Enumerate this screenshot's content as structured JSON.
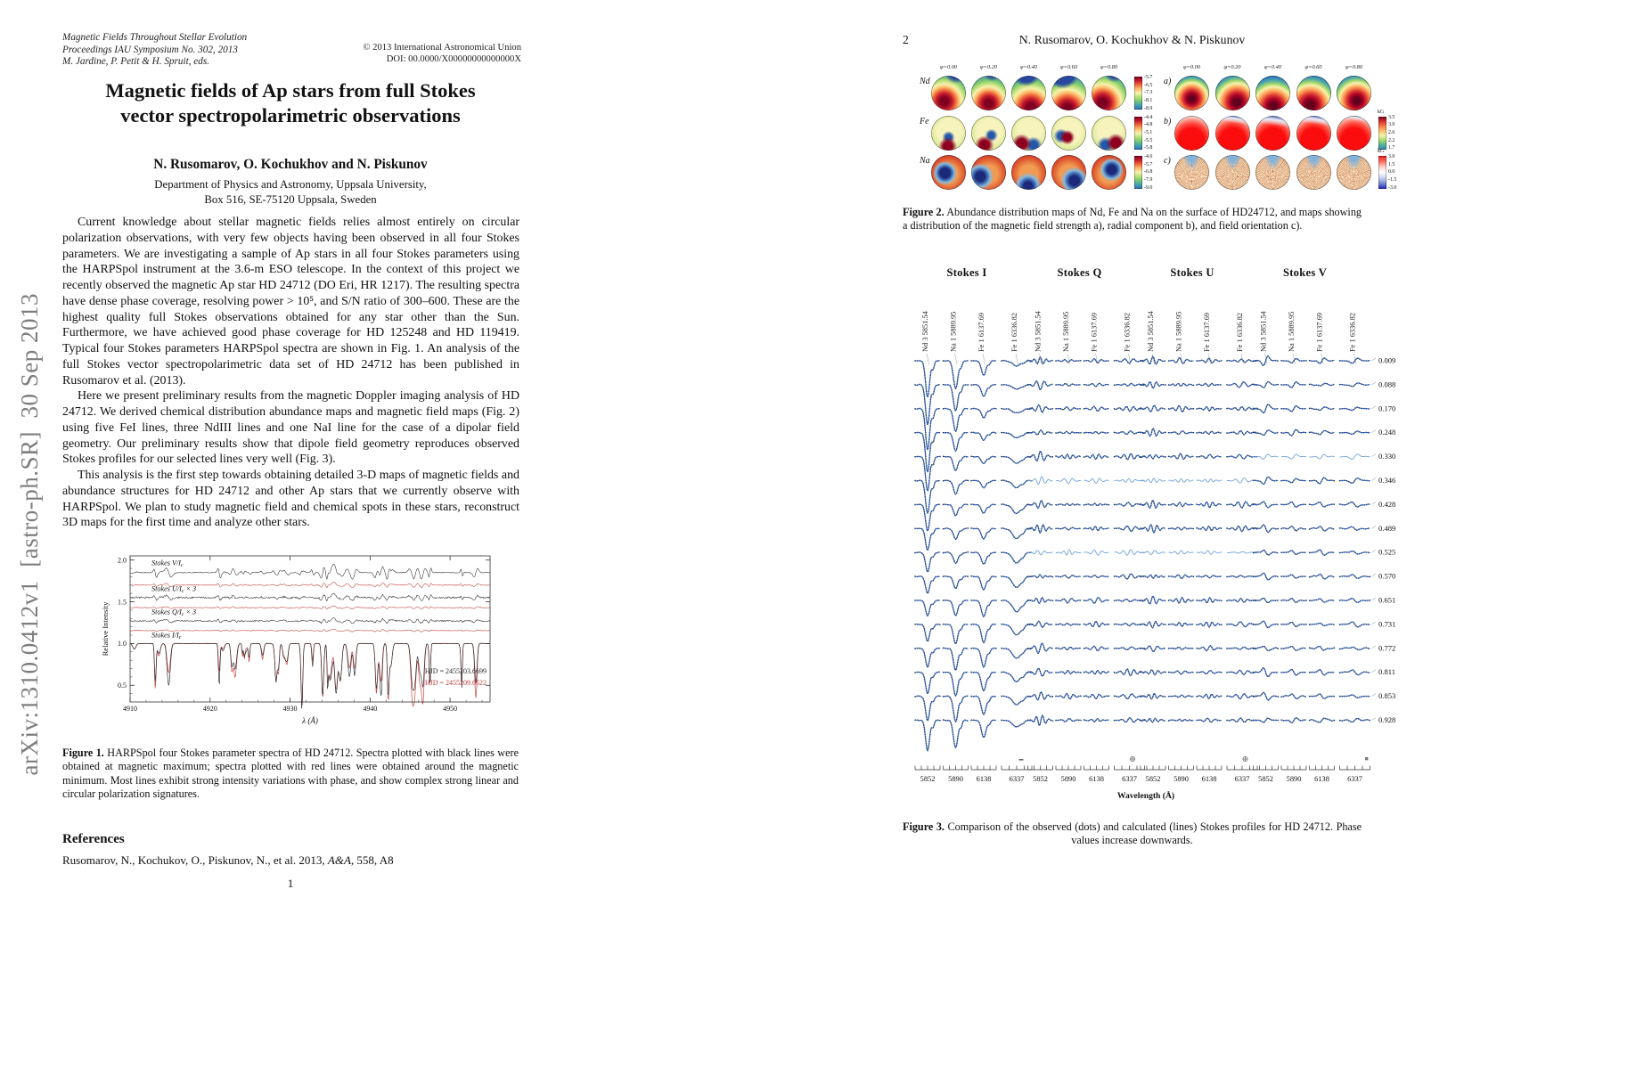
{
  "arxiv_banner": "arXiv:1310.0412v1  [astro-ph.SR]  30 Sep 2013",
  "page1": {
    "header_left_lines": [
      "Magnetic Fields Throughout Stellar Evolution",
      "Proceedings IAU Symposium No. 302, 2013",
      "M. Jardine, P. Petit & H. Spruit, eds."
    ],
    "header_right_lines": [
      "© 2013 International Astronomical Union",
      "DOI: 00.0000/X00000000000000X"
    ],
    "title_lines": [
      "Magnetic fields of Ap stars from full Stokes",
      "vector spectropolarimetric observations"
    ],
    "authors": "N. Rusomarov, O. Kochukhov and N. Piskunov",
    "affiliation_lines": [
      "Department of Physics and Astronomy, Uppsala University,",
      "Box 516, SE-75120 Uppsala, Sweden"
    ],
    "paragraphs": [
      "Current knowledge about stellar magnetic fields relies almost entirely on circular polarization observations, with very few objects having been observed in all four Stokes parameters. We are investigating a sample of Ap stars in all four Stokes parameters using the HARPSpol instrument at the 3.6-m ESO telescope. In the context of this project we recently observed the magnetic Ap star HD 24712 (DO Eri, HR 1217). The resulting spectra have dense phase coverage, resolving power > 10⁵, and S/N ratio of 300–600. These are the highest quality full Stokes observations obtained for any star other than the Sun. Furthermore, we have achieved good phase coverage for HD 125248 and HD 119419. Typical four Stokes parameters HARPSpol spectra are shown in Fig. 1. An analysis of the full Stokes vector spectropolarimetric data set of HD 24712 has been published in Rusomarov et al. (2013).",
      "Here we present preliminary results from the magnetic Doppler imaging analysis of HD 24712. We derived chemical distribution abundance maps and magnetic field maps (Fig. 2) using five FeI lines, three NdIII lines and one NaI line for the case of a dipolar field geometry. Our preliminary results show that dipole field geometry reproduces observed Stokes profiles for our selected lines very well (Fig. 3).",
      "This analysis is the first step towards obtaining detailed 3-D maps of magnetic fields and abundance structures for HD 24712 and other Ap stars that we currently observe with HARPSpol. We plan to study magnetic field and chemical spots in these stars, reconstruct 3D maps for the first time and analyze other stars."
    ],
    "figure1": {
      "ylabel": "Relative Intensity",
      "yticks": [
        "2.0",
        "1.5",
        "1.0",
        "0.5"
      ],
      "xticks": [
        "4910",
        "4920",
        "4930",
        "4940",
        "4950"
      ],
      "xlabel": "λ (Å)",
      "trace_labels": [
        "Stokes V/Ic",
        "Stokes U/Ic × 3",
        "Stokes Q/Ic × 3",
        "Stokes I/Ic"
      ],
      "legend": [
        {
          "label": "HJD = 2455203.6699",
          "color": "#2b2b2b"
        },
        {
          "label": "HJD = 2455209.6522",
          "color": "#c03a3a"
        }
      ],
      "caption_tag": "Figure 1.",
      "caption": "HARPSpol four Stokes parameter spectra of HD 24712. Spectra plotted with black lines were obtained at magnetic maximum; spectra plotted with red lines were obtained around the magnetic minimum. Most lines exhibit strong intensity variations with phase, and show complex strong linear and circular polarization signatures."
    },
    "references_heading": "References",
    "reference": {
      "pre": "Rusomarov, N., Kochukov, O., Piskunov, N., et al. 2013, ",
      "journal": "A&A",
      "post": ", 558, A8"
    },
    "page_number": "1"
  },
  "page2": {
    "page_number": "2",
    "running_head": "N. Rusomarov, O. Kochukhov & N. Piskunov",
    "figure2": {
      "phase_labels": [
        "φ=0.00",
        "φ=0.20",
        "φ=0.40",
        "φ=0.60",
        "φ=0.80"
      ],
      "left_rows": [
        {
          "label": "Nd",
          "colorbar_ticks": [
            "-5.7",
            "-6.5",
            "-7.3",
            "-8.1",
            "-8.9"
          ]
        },
        {
          "label": "Fe",
          "colorbar_ticks": [
            "-4.4",
            "-4.8",
            "-5.1",
            "-5.5",
            "-5.8"
          ]
        },
        {
          "label": "Na",
          "colorbar_ticks": [
            "-4.6",
            "-5.7",
            "-6.8",
            "-7.9",
            "-9.0"
          ]
        }
      ],
      "right_rows": [
        {
          "label": "a)"
        },
        {
          "label": "b)",
          "colorbar_unit": "kG",
          "colorbar_ticks": [
            "3.5",
            "3.0",
            "2.6",
            "2.2",
            "1.7"
          ]
        },
        {
          "label": "c)",
          "colorbar_unit": "kG",
          "colorbar_ticks": [
            "3.0",
            "1.5",
            "0.0",
            "-1.5",
            "-3.0"
          ]
        }
      ],
      "caption_tag": "Figure 2.",
      "caption": "Abundance distribution maps of Nd, Fe and Na on the surface of HD24712, and maps showing a distribution of the magnetic field strength a), radial component b), and field orientation c)."
    },
    "figure3": {
      "stokes_headers": [
        "Stokes I",
        "Stokes Q",
        "Stokes U",
        "Stokes V"
      ],
      "line_labels": [
        "Nd 3 5851.54",
        "Na 1 5889.95",
        "Fe 1 6137.69",
        "Fe 1 6336.82"
      ],
      "phases": [
        "0.009",
        "0.088",
        "0.170",
        "0.248",
        "0.330",
        "0.346",
        "0.428",
        "0.489",
        "0.525",
        "0.570",
        "0.651",
        "0.731",
        "0.772",
        "0.811",
        "0.853",
        "0.928"
      ],
      "xtick_labels": [
        "5852",
        "5890",
        "6138",
        "6337"
      ],
      "xlabel": "Wavelength (Å)",
      "caption_tag": "Figure 3.",
      "caption": "Comparison of the observed (dots) and calculated (lines) Stokes profiles for HD 24712. Phase values increase downwards."
    }
  }
}
